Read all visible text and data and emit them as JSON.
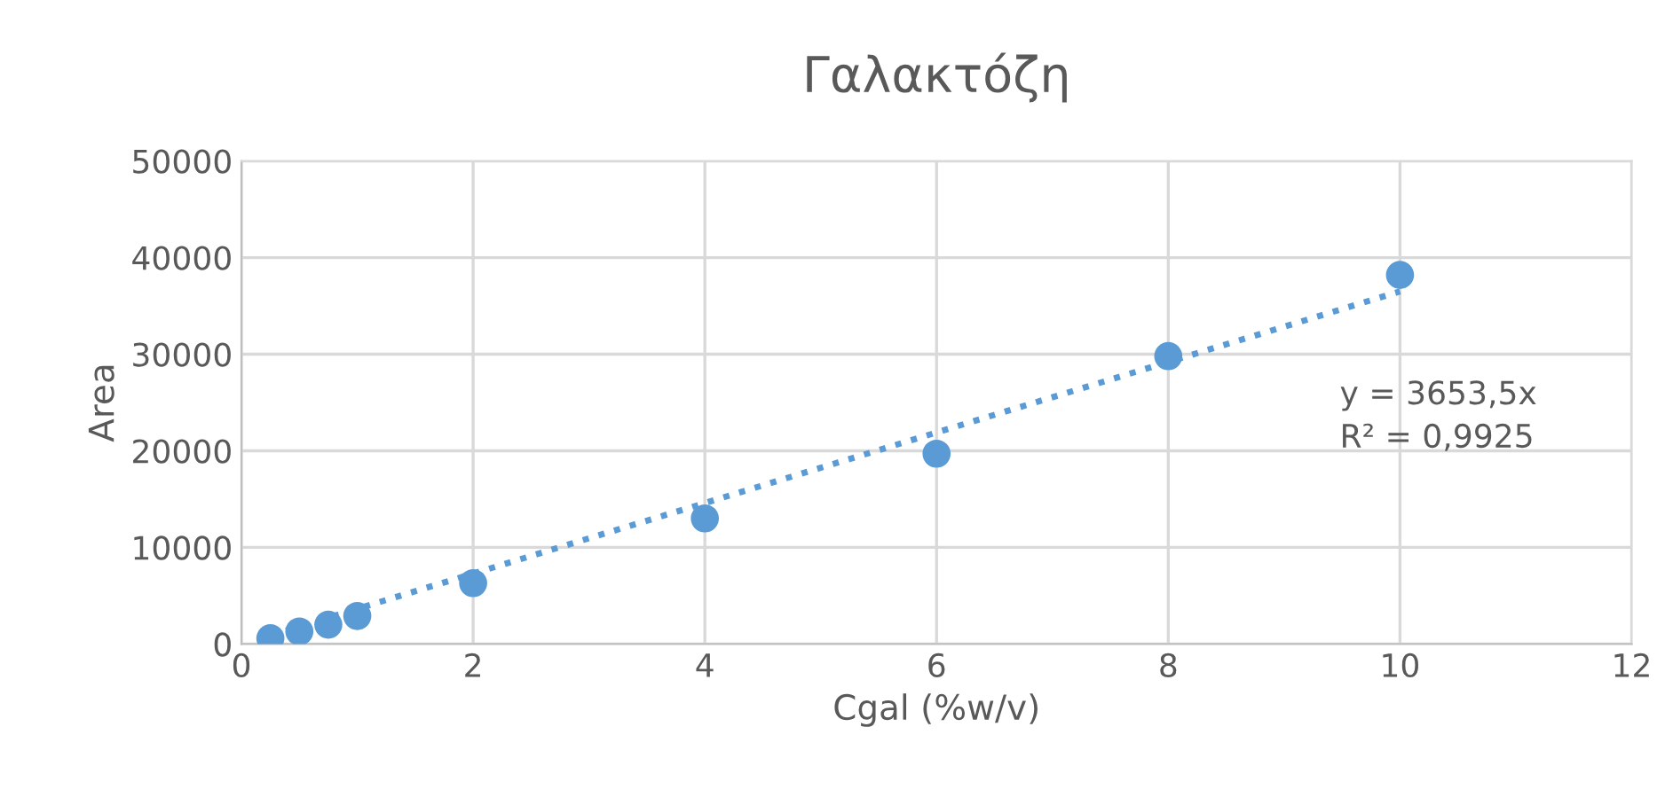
{
  "chart_data": {
    "type": "scatter",
    "title": "Γαλακτόζη",
    "xlabel": "Cgal (%w/v)",
    "ylabel": "Area",
    "series": [
      {
        "color": "#5b9bd5",
        "x": [
          0.25,
          0.5,
          0.75,
          1,
          2,
          4,
          6,
          8,
          10
        ],
        "values": [
          600,
          1300,
          2000,
          2900,
          6300,
          13000,
          19700,
          29800,
          38200
        ],
        "marker": "circle"
      },
      {
        "type": "line",
        "color": "#5b9bd5",
        "x": [
          0.25,
          10
        ],
        "values": [
          900,
          36500
        ],
        "line_style": "dotted",
        "marker": "none"
      }
    ],
    "annotations": [
      "y = 3653,5x\nR² = 0,9925"
    ],
    "xlim": [
      0,
      12
    ],
    "xticks": [
      0,
      2,
      4,
      6,
      8,
      10,
      12
    ],
    "ylim": [
      0,
      50000
    ],
    "yticks": [
      0,
      10000,
      20000,
      30000,
      40000,
      50000
    ],
    "grid": true,
    "legend": false
  }
}
